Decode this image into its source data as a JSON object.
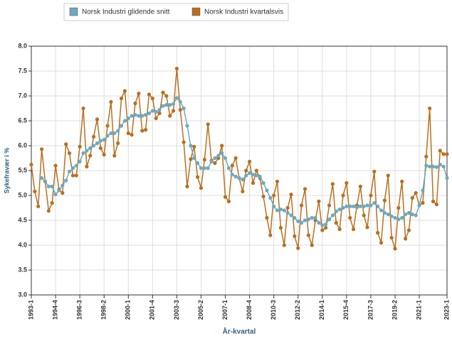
{
  "chart_data": {
    "type": "line",
    "x_label": "År-kvartal",
    "y_label": "Sykefravær i %",
    "categories": [
      "1993-1",
      null,
      null,
      null,
      null,
      null,
      null,
      "1994-4",
      null,
      null,
      null,
      null,
      null,
      null,
      "1996-3",
      null,
      null,
      null,
      null,
      null,
      null,
      "1998-2",
      null,
      null,
      null,
      null,
      null,
      null,
      "2000-1",
      null,
      null,
      null,
      null,
      null,
      null,
      "2001-4",
      null,
      null,
      null,
      null,
      null,
      null,
      "2003-3",
      null,
      null,
      null,
      null,
      null,
      null,
      "2005-2",
      null,
      null,
      null,
      null,
      null,
      null,
      "2007-1",
      null,
      null,
      null,
      null,
      null,
      null,
      "2008-4",
      null,
      null,
      null,
      null,
      null,
      null,
      "2010-3",
      null,
      null,
      null,
      null,
      null,
      null,
      "2012-2",
      null,
      null,
      null,
      null,
      null,
      null,
      "2014-1",
      null,
      null,
      null,
      null,
      null,
      null,
      "2015-4",
      null,
      null,
      null,
      null,
      null,
      null,
      "2017-3",
      null,
      null,
      null,
      null,
      null,
      null,
      "2019-2",
      null,
      null,
      null,
      null,
      null,
      null,
      "2021-1",
      null,
      null,
      null,
      null,
      null,
      null,
      null,
      "2023-1"
    ],
    "series": [
      {
        "name": "Norsk Industri glidende snitt",
        "color": "#6fa8bf",
        "values": [
          null,
          null,
          null,
          5.35,
          5.28,
          5.18,
          5.18,
          5.02,
          5.1,
          5.2,
          5.3,
          5.48,
          5.55,
          5.6,
          5.68,
          5.85,
          5.9,
          5.95,
          6.0,
          6.05,
          6.1,
          6.12,
          6.2,
          6.25,
          6.25,
          6.3,
          6.4,
          6.5,
          6.55,
          6.6,
          6.62,
          6.6,
          6.6,
          6.62,
          6.65,
          6.7,
          6.68,
          6.72,
          6.8,
          6.82,
          6.82,
          6.84,
          6.96,
          6.88,
          6.75,
          6.4,
          6.0,
          5.75,
          5.65,
          5.55,
          5.55,
          5.55,
          5.68,
          5.75,
          5.8,
          5.85,
          5.75,
          5.55,
          5.42,
          5.38,
          5.35,
          5.32,
          5.4,
          5.45,
          5.42,
          5.4,
          5.38,
          5.25,
          5.1,
          4.95,
          4.78,
          4.7,
          4.72,
          4.7,
          4.65,
          4.6,
          4.55,
          4.48,
          4.45,
          4.5,
          4.52,
          4.55,
          4.55,
          4.45,
          4.4,
          4.42,
          4.52,
          4.6,
          4.68,
          4.72,
          4.75,
          4.78,
          4.78,
          4.78,
          4.76,
          4.78,
          4.78,
          4.8,
          4.8,
          4.85,
          4.78,
          4.7,
          4.65,
          4.62,
          4.58,
          4.55,
          4.52,
          4.55,
          4.62,
          4.65,
          4.62,
          4.6,
          4.8,
          5.1,
          5.6,
          5.58,
          5.58,
          5.57,
          5.62,
          5.58,
          5.35
        ]
      },
      {
        "name": "Norsk Industri kvartalsvis",
        "color": "#b8701f",
        "values": [
          5.62,
          5.08,
          4.78,
          5.93,
          5.28,
          4.69,
          4.85,
          5.6,
          5.12,
          5.05,
          6.03,
          5.85,
          5.4,
          5.4,
          5.98,
          6.75,
          5.58,
          5.8,
          6.18,
          6.53,
          5.95,
          5.82,
          6.4,
          6.88,
          5.8,
          6.05,
          6.95,
          7.1,
          6.25,
          6.22,
          6.85,
          7.05,
          6.3,
          6.32,
          7.03,
          6.95,
          6.55,
          6.65,
          7.07,
          7.0,
          6.6,
          6.7,
          7.55,
          6.72,
          6.07,
          5.18,
          5.73,
          5.98,
          5.37,
          5.15,
          5.72,
          6.43,
          5.7,
          5.65,
          5.75,
          6.0,
          4.97,
          4.88,
          5.6,
          5.75,
          5.35,
          5.08,
          5.5,
          5.68,
          5.25,
          5.5,
          5.35,
          4.98,
          4.55,
          4.2,
          5.0,
          5.28,
          4.35,
          4.0,
          4.75,
          5.02,
          4.18,
          3.94,
          4.8,
          5.13,
          4.2,
          4.0,
          4.5,
          4.88,
          4.3,
          4.35,
          4.8,
          5.23,
          4.45,
          4.32,
          5.0,
          5.25,
          4.55,
          4.32,
          4.8,
          5.18,
          4.6,
          4.36,
          5.0,
          5.48,
          4.25,
          4.05,
          4.9,
          5.4,
          4.15,
          3.93,
          4.75,
          5.28,
          4.13,
          4.3,
          4.95,
          5.05,
          4.8,
          4.85,
          5.78,
          6.75,
          4.88,
          4.82,
          5.9,
          5.83,
          5.83
        ]
      }
    ],
    "ylim": [
      3,
      8
    ],
    "yticks": [
      {
        "value": 3,
        "label": "3.0"
      },
      3.5,
      {
        "value": 4,
        "label": "4.0"
      },
      4.5,
      {
        "value": 5,
        "label": "5.0"
      },
      5.5,
      {
        "value": 6,
        "label": "6.0"
      },
      6.5,
      {
        "value": 7,
        "label": "7.0"
      },
      7.5,
      {
        "value": 8,
        "label": "8.0"
      }
    ],
    "grid": true
  }
}
